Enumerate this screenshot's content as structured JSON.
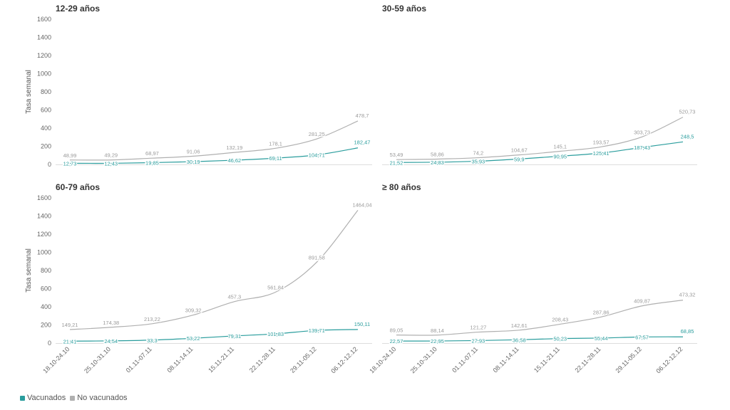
{
  "chart_data": {
    "type": "line",
    "ylabel": "Tasa semanal",
    "ylim": [
      0,
      1600
    ],
    "yticks": [
      "0",
      "200",
      "400",
      "600",
      "800",
      "1000",
      "1200",
      "1400",
      "1600"
    ],
    "categories": [
      "18.10-24.10",
      "25.10-31.10",
      "01.11-07.11",
      "08.11-14.11",
      "15.11-21.11",
      "22.11-28.11",
      "29.11-05.12",
      "06.12-12.12"
    ],
    "colors": {
      "Vacunados": "#2a9d9d",
      "No vacunados": "#b0b0b0"
    },
    "legend": [
      {
        "name": "Vacunados",
        "color": "#2a9d9d"
      },
      {
        "name": "No vacunados",
        "color": "#b0b0b0"
      }
    ],
    "panels": [
      {
        "title": "12-29 años",
        "series": [
          {
            "name": "No vacunados",
            "values": [
              48.99,
              49.29,
              68.97,
              91.06,
              132.19,
              178.1,
              281.25,
              478.7
            ],
            "labels": [
              "48,99",
              "49,29",
              "68,97",
              "91,06",
              "132,19",
              "178,1",
              "281,25",
              "478,7"
            ]
          },
          {
            "name": "Vacunados",
            "values": [
              12.73,
              12.43,
              19.85,
              30.19,
              46.62,
              69.11,
              104.71,
              182.47
            ],
            "labels": [
              "12,73",
              "12,43",
              "19,85",
              "30,19",
              "46,62",
              "69,11",
              "104,71",
              "182,47"
            ]
          }
        ]
      },
      {
        "title": "30-59 años",
        "series": [
          {
            "name": "No vacunados",
            "values": [
              53.49,
              58.86,
              74.2,
              104.67,
              145.1,
              193.57,
              303.73,
              520.73
            ],
            "labels": [
              "53,49",
              "58,86",
              "74,2",
              "104,67",
              "145,1",
              "193,57",
              "303,73",
              "520,73"
            ]
          },
          {
            "name": "Vacunados",
            "values": [
              21.52,
              24.83,
              35.93,
              59.9,
              90.95,
              125.41,
              187.43,
              248.5
            ],
            "labels": [
              "21,52",
              "24,83",
              "35,93",
              "59,9",
              "90,95",
              "125,41",
              "187,43",
              "248,5"
            ]
          }
        ]
      },
      {
        "title": "60-79 años",
        "series": [
          {
            "name": "No vacunados",
            "values": [
              149.21,
              174.38,
              213.22,
              309.32,
              457.3,
              561.84,
              891.58,
              1464.04
            ],
            "labels": [
              "149,21",
              "174,38",
              "213,22",
              "309,32",
              "457,3",
              "561,84",
              "891,58",
              "1464,04"
            ]
          },
          {
            "name": "Vacunados",
            "values": [
              21.41,
              24.54,
              33.3,
              53.22,
              79.31,
              101.83,
              139.71,
              150.11
            ],
            "labels": [
              "21,41",
              "24,54",
              "33,3",
              "53,22",
              "79,31",
              "101,83",
              "139,71",
              "150,11"
            ]
          }
        ]
      },
      {
        "title": "≥ 80 años",
        "series": [
          {
            "name": "No vacunados",
            "values": [
              89.05,
              88.14,
              121.27,
              142.61,
              208.43,
              287.86,
              409.87,
              473.32
            ],
            "labels": [
              "89,05",
              "88,14",
              "121,27",
              "142,61",
              "208,43",
              "287,86",
              "409,87",
              "473,32"
            ]
          },
          {
            "name": "Vacunados",
            "values": [
              22.57,
              22.95,
              27.93,
              36.58,
              50.23,
              55.44,
              67.57,
              68.85
            ],
            "labels": [
              "22,57",
              "22,95",
              "27,93",
              "36,58",
              "50,23",
              "55,44",
              "67,57",
              "68,85"
            ]
          }
        ]
      }
    ]
  }
}
